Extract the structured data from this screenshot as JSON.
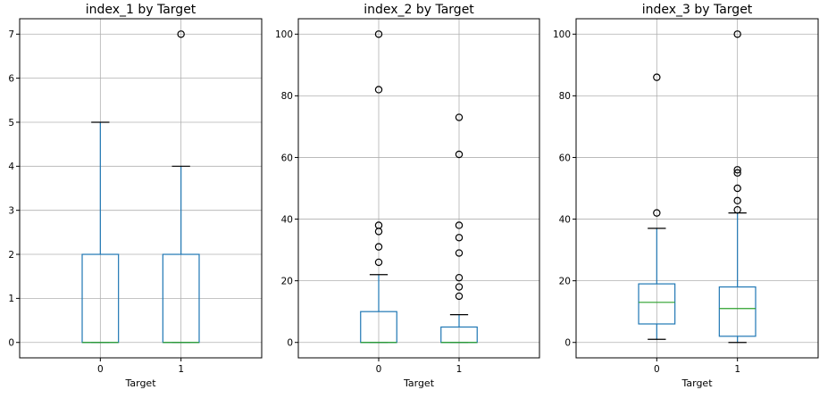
{
  "chart_data": [
    {
      "type": "boxplot",
      "title": "index_1 by Target",
      "xlabel": "Target",
      "categories": [
        "0",
        "1"
      ],
      "yticks": [
        0,
        1,
        2,
        3,
        4,
        5,
        6,
        7
      ],
      "ylim": [
        -0.35,
        7.35
      ],
      "grid": true,
      "boxes": [
        {
          "category": "0",
          "min": 0,
          "q1": 0,
          "median": 0,
          "q3": 2,
          "max": 5,
          "fliers": []
        },
        {
          "category": "1",
          "min": 0,
          "q1": 0,
          "median": 0,
          "q3": 2,
          "max": 4,
          "fliers": [
            7
          ]
        }
      ]
    },
    {
      "type": "boxplot",
      "title": "index_2 by Target",
      "xlabel": "Target",
      "categories": [
        "0",
        "1"
      ],
      "yticks": [
        0,
        20,
        40,
        60,
        80,
        100
      ],
      "ylim": [
        -5,
        105
      ],
      "grid": true,
      "boxes": [
        {
          "category": "0",
          "min": 0,
          "q1": 0,
          "median": 0,
          "q3": 10,
          "max": 22,
          "fliers": [
            26,
            31,
            36,
            38,
            82,
            100
          ]
        },
        {
          "category": "1",
          "min": 0,
          "q1": 0,
          "median": 0,
          "q3": 5,
          "max": 9,
          "fliers": [
            15,
            18,
            21,
            29,
            34,
            38,
            61,
            73
          ]
        }
      ]
    },
    {
      "type": "boxplot",
      "title": "index_3 by Target",
      "xlabel": "Target",
      "categories": [
        "0",
        "1"
      ],
      "yticks": [
        0,
        20,
        40,
        60,
        80,
        100
      ],
      "ylim": [
        -5,
        105
      ],
      "grid": true,
      "boxes": [
        {
          "category": "0",
          "min": 1,
          "q1": 6,
          "median": 13,
          "q3": 19,
          "max": 37,
          "fliers": [
            42,
            86
          ]
        },
        {
          "category": "1",
          "min": 0,
          "q1": 2,
          "median": 11,
          "q3": 18,
          "max": 42,
          "fliers": [
            43,
            46,
            50,
            55,
            56,
            100
          ]
        }
      ]
    }
  ],
  "colors": {
    "box": "#1f77b4",
    "median": "#2ca02c",
    "cap": "#000000",
    "flier": "#000000",
    "grid": "#b0b0b0"
  }
}
